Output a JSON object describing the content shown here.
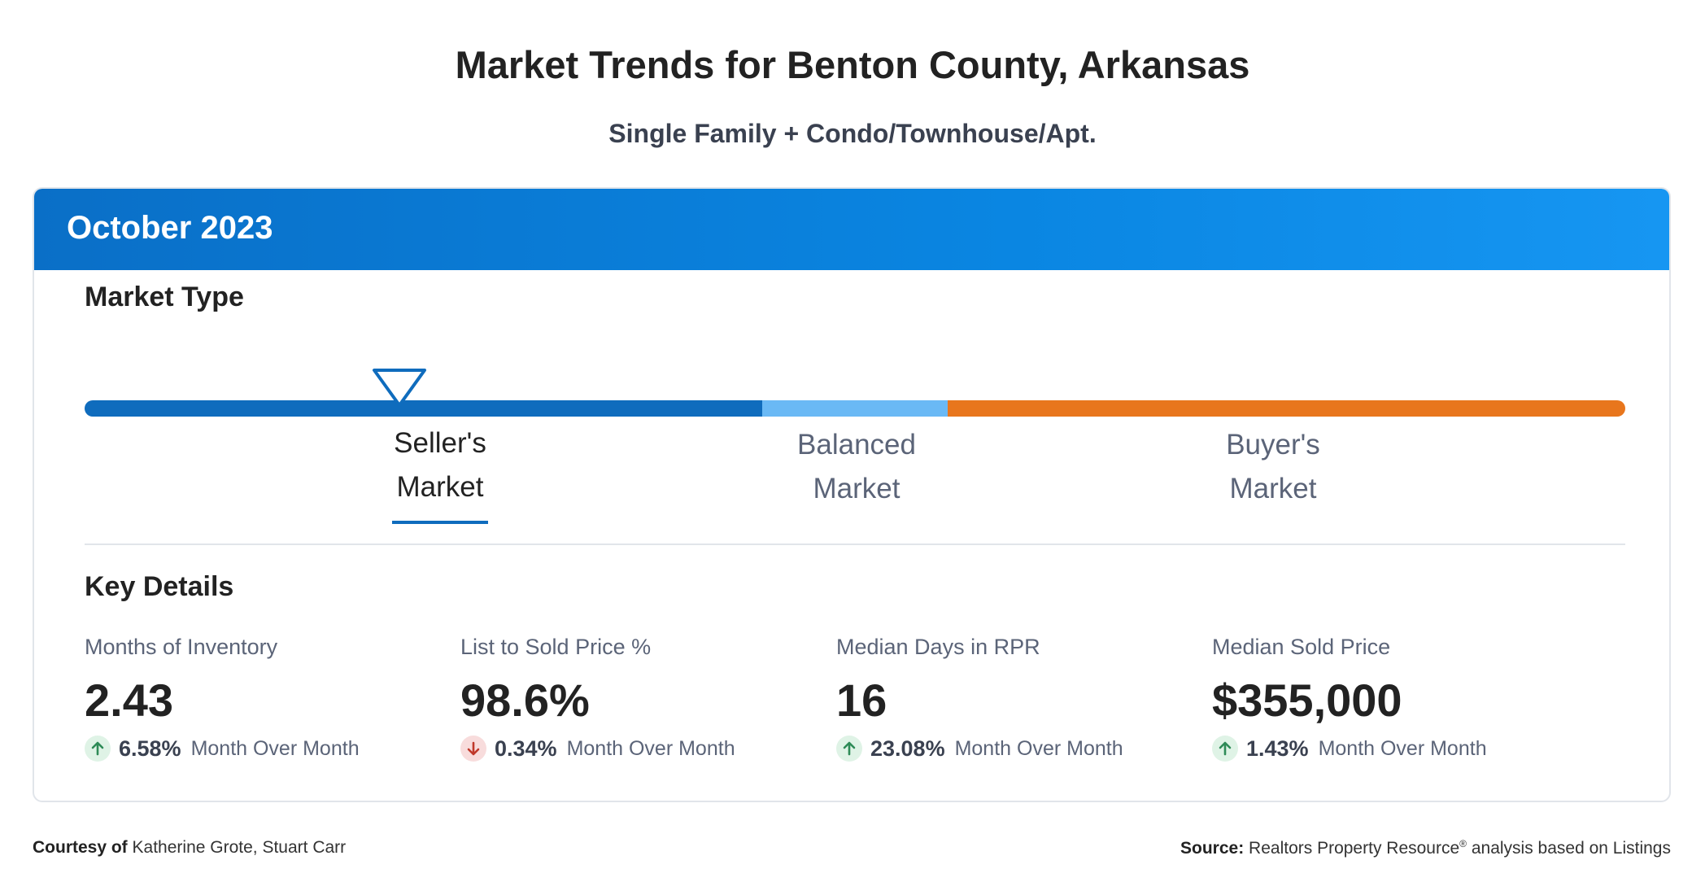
{
  "report": {
    "title": "Market Trends for Benton County, Arkansas",
    "subtitle": "Single Family + Condo/Townhouse/Apt."
  },
  "card": {
    "period": "October 2023"
  },
  "market_type": {
    "heading": "Market Type",
    "selected": "Seller's Market",
    "segments": [
      {
        "line1": "Seller's",
        "line2": "Market",
        "color": "#0f6cbd"
      },
      {
        "line1": "Balanced",
        "line2": "Market",
        "color": "#6ab9f5"
      },
      {
        "line1": "Buyer's",
        "line2": "Market",
        "color": "#e8761d"
      }
    ]
  },
  "key_details": {
    "heading": "Key Details",
    "items": [
      {
        "label": "Months of Inventory",
        "value": "2.43",
        "direction": "up",
        "change": "6.58%",
        "period": "Month Over Month"
      },
      {
        "label": "List to Sold Price %",
        "value": "98.6%",
        "direction": "down",
        "change": "0.34%",
        "period": "Month Over Month"
      },
      {
        "label": "Median Days in RPR",
        "value": "16",
        "direction": "up",
        "change": "23.08%",
        "period": "Month Over Month"
      },
      {
        "label": "Median Sold Price",
        "value": "$355,000",
        "direction": "up",
        "change": "1.43%",
        "period": "Month Over Month"
      }
    ]
  },
  "footer": {
    "courtesy_label": "Courtesy of",
    "courtesy_names": "Katherine Grote, Stuart Carr",
    "source_label": "Source:",
    "source_text_1": "Realtors Property Resource",
    "source_reg": "®",
    "source_text_2": " analysis based on Listings"
  },
  "colors": {
    "header_blue": "#0a86e2",
    "seller": "#0f6cbd",
    "balanced": "#6ab9f5",
    "buyer": "#e8761d",
    "up_arrow": "#2e8b57",
    "down_arrow": "#c0392b"
  }
}
